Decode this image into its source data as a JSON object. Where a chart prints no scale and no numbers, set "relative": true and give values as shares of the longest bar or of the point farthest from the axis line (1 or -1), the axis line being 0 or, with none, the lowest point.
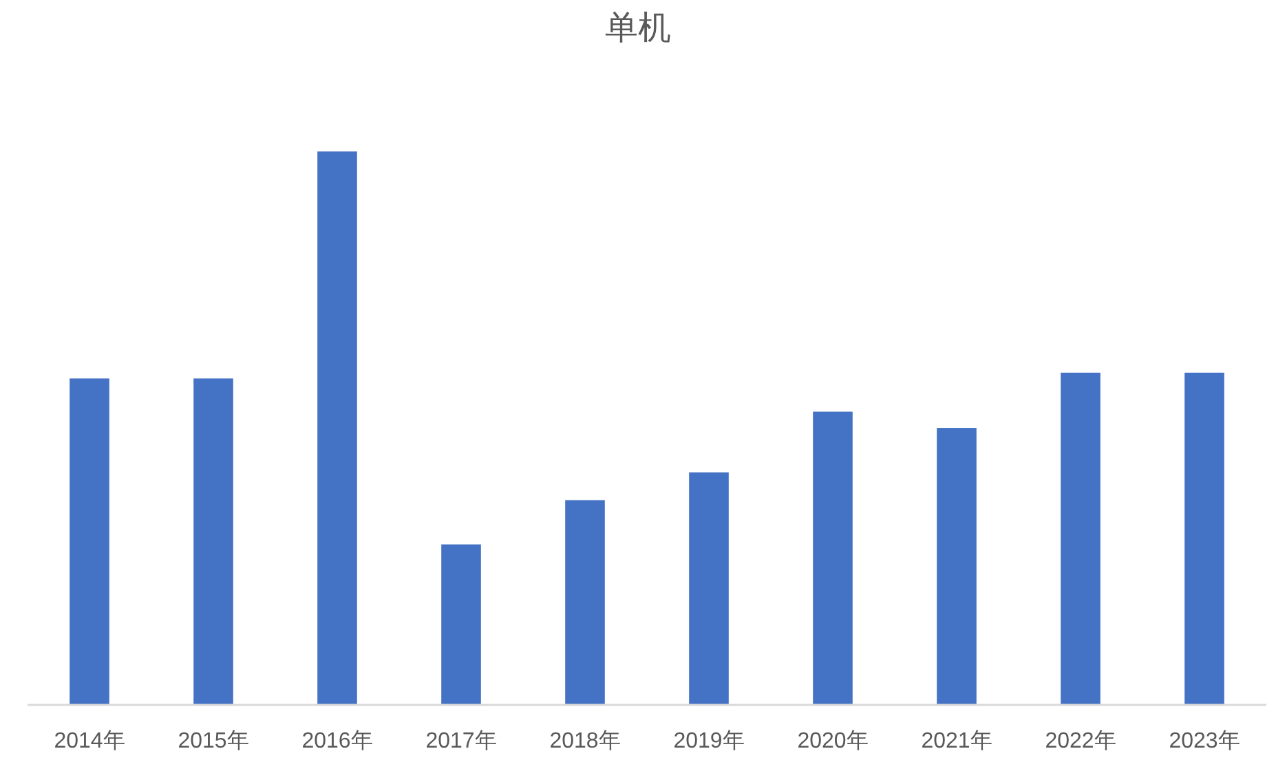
{
  "chart_data": {
    "type": "bar",
    "title": "单机",
    "relative": true,
    "color": "#4472c4",
    "categories": [
      "2014年",
      "2015年",
      "2016年",
      "2017年",
      "2018年",
      "2019年",
      "2020年",
      "2021年",
      "2022年",
      "2023年"
    ],
    "values": [
      0.59,
      0.59,
      1,
      0.29,
      0.37,
      0.42,
      0.53,
      0.5,
      0.6,
      0.6
    ],
    "grid": false
  }
}
